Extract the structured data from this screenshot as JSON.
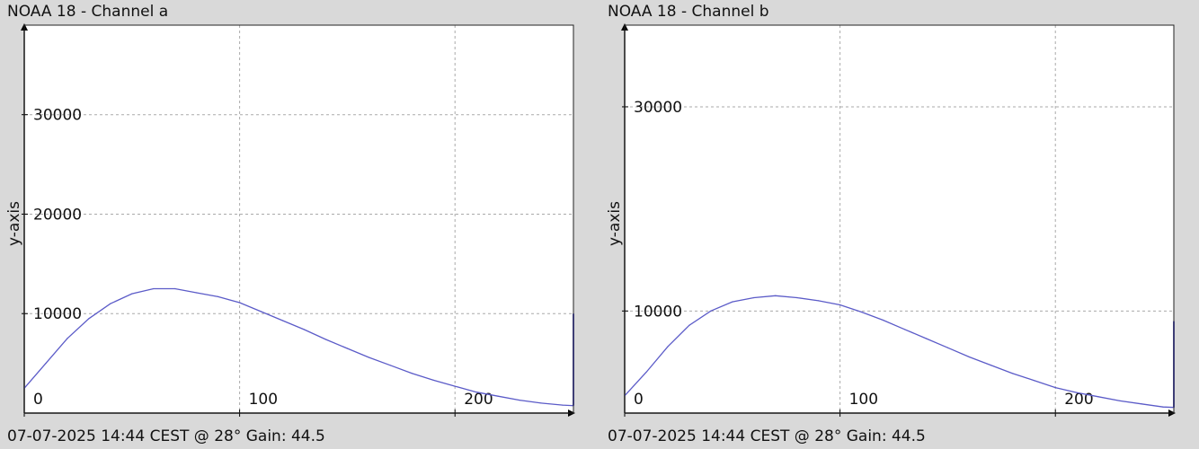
{
  "charts": [
    {
      "title": "NOAA 18 - Channel a",
      "footer": "07-07-2025 14:44 CEST @ 28° Gain: 44.5",
      "ylabel": "y-axis"
    },
    {
      "title": "NOAA 18 - Channel b",
      "footer": "07-07-2025 14:44 CEST @ 28° Gain: 44.5",
      "ylabel": "y-axis"
    }
  ],
  "chart_data": [
    {
      "type": "line",
      "title": "NOAA 18 - Channel a",
      "xlabel": "",
      "ylabel": "y-axis",
      "xlim": [
        0,
        255
      ],
      "ylim": [
        0,
        39000
      ],
      "x_ticks": [
        0,
        100,
        200
      ],
      "y_ticks": [
        10000,
        20000,
        30000
      ],
      "grid": true,
      "line_color": "#5b5bc8",
      "series": [
        {
          "x": [
            0,
            10,
            20,
            30,
            40,
            50,
            60,
            70,
            80,
            90,
            100,
            110,
            120,
            130,
            140,
            150,
            160,
            170,
            180,
            190,
            200,
            210,
            220,
            230,
            240,
            250,
            255
          ],
          "y": [
            2500,
            5000,
            7500,
            9500,
            11000,
            12000,
            12500,
            12500,
            12100,
            11700,
            11100,
            10200,
            9300,
            8400,
            7400,
            6500,
            5600,
            4800,
            4000,
            3300,
            2700,
            2100,
            1700,
            1300,
            1000,
            800,
            750
          ]
        }
      ],
      "end_marker": {
        "x": 255,
        "y": [
          750,
          10000
        ]
      }
    },
    {
      "type": "line",
      "title": "NOAA 18 - Channel b",
      "xlabel": "",
      "ylabel": "y-axis",
      "xlim": [
        0,
        255
      ],
      "ylim": [
        0,
        38000
      ],
      "x_ticks": [
        0,
        100,
        200
      ],
      "y_ticks": [
        10000,
        30000
      ],
      "grid": true,
      "line_color": "#5b5bc8",
      "series": [
        {
          "x": [
            0,
            10,
            20,
            30,
            40,
            50,
            60,
            70,
            80,
            90,
            100,
            110,
            120,
            130,
            140,
            150,
            160,
            170,
            180,
            190,
            200,
            210,
            220,
            230,
            240,
            250,
            255
          ],
          "y": [
            1700,
            4000,
            6500,
            8600,
            10000,
            10900,
            11300,
            11500,
            11300,
            11000,
            10600,
            9900,
            9100,
            8200,
            7300,
            6400,
            5500,
            4700,
            3900,
            3200,
            2500,
            2000,
            1600,
            1200,
            900,
            600,
            550
          ]
        }
      ],
      "end_marker": {
        "x": 255,
        "y": [
          550,
          9000
        ]
      }
    }
  ]
}
